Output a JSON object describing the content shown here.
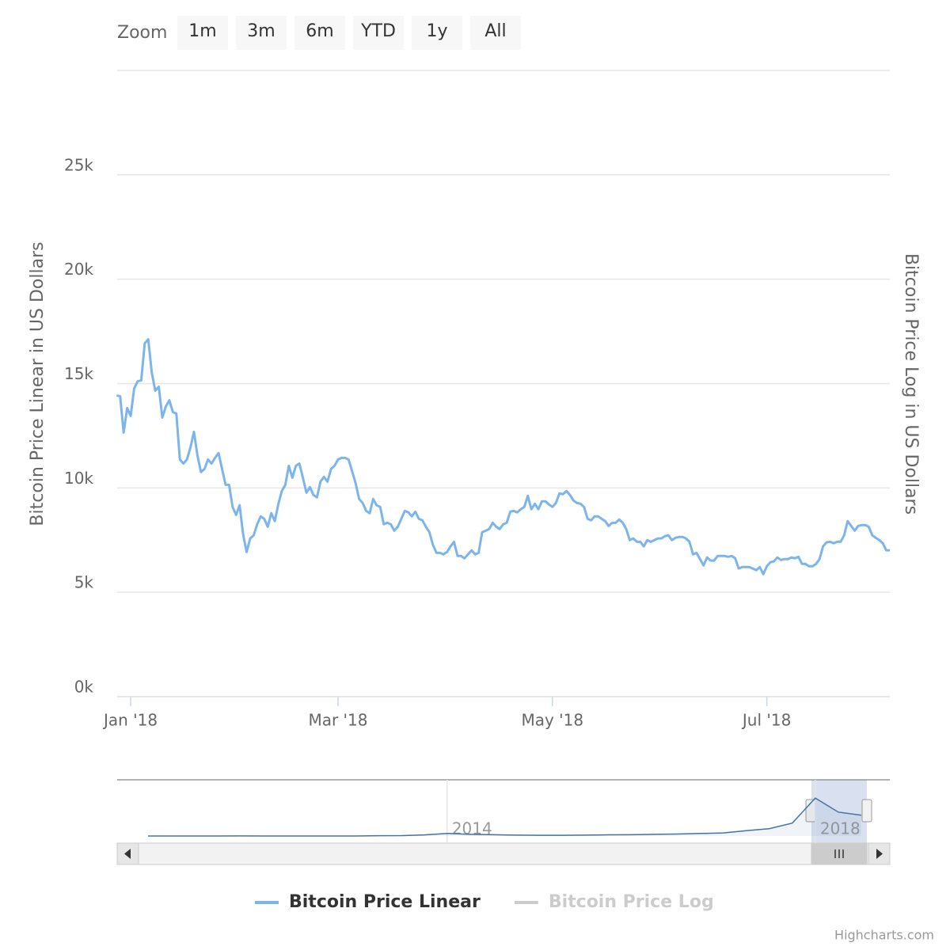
{
  "zoom": {
    "label": "Zoom",
    "buttons": [
      "1m",
      "3m",
      "6m",
      "YTD",
      "1y",
      "All"
    ]
  },
  "chart_data": [
    {
      "type": "line",
      "ylabel": "Bitcoin Price Linear in US Dollars",
      "y2label": "Bitcoin Price Log in US Dollars",
      "categories": [
        null,
        null,
        null,
        null,
        "Jan '18",
        null,
        null,
        null,
        null,
        null,
        null,
        null,
        null,
        null,
        null,
        null,
        null,
        null,
        null,
        null,
        null,
        null,
        null,
        null,
        null,
        null,
        null,
        null,
        null,
        null,
        null,
        null,
        null,
        null,
        null,
        null,
        null,
        null,
        null,
        null,
        null,
        null,
        null,
        null,
        null,
        null,
        null,
        null,
        null,
        null,
        null,
        null,
        null,
        null,
        null,
        null,
        null,
        null,
        null,
        null,
        null,
        null,
        null,
        "Mar '18",
        null,
        null,
        null,
        null,
        null,
        null,
        null,
        null,
        null,
        null,
        null,
        null,
        null,
        null,
        null,
        null,
        null,
        null,
        null,
        null,
        null,
        null,
        null,
        null,
        null,
        null,
        null,
        null,
        null,
        null,
        null,
        null,
        null,
        null,
        null,
        null,
        null,
        null,
        null,
        null,
        null,
        null,
        null,
        null,
        null,
        null,
        null,
        null,
        null,
        null,
        null,
        null,
        null,
        null,
        null,
        null,
        null,
        null,
        null,
        null,
        "May '18",
        null,
        null,
        null,
        null,
        null,
        null,
        null,
        null,
        null,
        null,
        null,
        null,
        null,
        null,
        null,
        null,
        null,
        null,
        null,
        null,
        null,
        null,
        null,
        null,
        null,
        null,
        null,
        null,
        null,
        null,
        null,
        null,
        null,
        null,
        null,
        null,
        null,
        null,
        null,
        null,
        null,
        null,
        null,
        null,
        null,
        null,
        null,
        null,
        null,
        null,
        null,
        null,
        null,
        null,
        null,
        null,
        null,
        null,
        null,
        null,
        "Jul '18",
        null,
        null,
        null,
        null,
        null,
        null,
        null,
        null,
        null,
        null,
        null,
        null,
        null,
        null,
        null,
        null,
        null,
        null,
        null,
        null,
        null,
        null,
        null,
        null,
        null,
        null,
        null,
        null,
        null,
        null,
        null,
        null,
        null,
        null,
        null
      ],
      "series": [
        {
          "name": "Bitcoin Price Linear",
          "color": "#7cb5ec",
          "values": [
            14430,
            14390,
            12650,
            13830,
            13450,
            14770,
            15110,
            15150,
            16930,
            17120,
            15530,
            14660,
            14850,
            13370,
            13900,
            14200,
            13640,
            13560,
            11360,
            11170,
            11360,
            11930,
            12690,
            11550,
            10760,
            10910,
            11360,
            11170,
            11440,
            11670,
            10910,
            10150,
            10150,
            9090,
            8710,
            9170,
            7770,
            6930,
            7580,
            7730,
            8260,
            8640,
            8520,
            8140,
            8790,
            8410,
            9210,
            9850,
            10150,
            11060,
            10490,
            11060,
            11170,
            10490,
            9770,
            10040,
            9660,
            9550,
            10300,
            10530,
            10300,
            10910,
            11060,
            11360,
            11440,
            11440,
            11360,
            10800,
            10230,
            9470,
            9280,
            8900,
            8790,
            9470,
            9170,
            9090,
            8260,
            8330,
            8260,
            7950,
            8140,
            8520,
            8900,
            8830,
            8640,
            8860,
            8520,
            8450,
            8140,
            7880,
            7270,
            6890,
            6890,
            6820,
            6930,
            7200,
            7420,
            6740,
            6740,
            6630,
            6820,
            7010,
            6820,
            6890,
            7880,
            7950,
            8030,
            8330,
            8140,
            8030,
            8260,
            8330,
            8860,
            8900,
            8830,
            8980,
            9090,
            9620,
            8980,
            9240,
            8980,
            9360,
            9360,
            9210,
            9090,
            9280,
            9740,
            9700,
            9850,
            9660,
            9390,
            9280,
            9240,
            9090,
            8520,
            8450,
            8640,
            8640,
            8520,
            8410,
            8180,
            8330,
            8330,
            8490,
            8330,
            8030,
            7500,
            7580,
            7420,
            7420,
            7200,
            7500,
            7420,
            7500,
            7580,
            7580,
            7690,
            7730,
            7500,
            7610,
            7650,
            7650,
            7580,
            7420,
            6820,
            6890,
            6590,
            6290,
            6670,
            6520,
            6520,
            6740,
            6740,
            6740,
            6700,
            6740,
            6630,
            6140,
            6210,
            6210,
            6210,
            6140,
            6060,
            6210,
            5870,
            6250,
            6440,
            6480,
            6670,
            6550,
            6590,
            6590,
            6670,
            6630,
            6700,
            6360,
            6360,
            6250,
            6250,
            6360,
            6590,
            7200,
            7390,
            7420,
            7350,
            7420,
            7420,
            7730,
            8410,
            8180,
            7950,
            8180,
            8220,
            8220,
            8140,
            7730,
            7610,
            7500,
            7350,
            7010,
            7010
          ]
        },
        {
          "name": "Bitcoin Price Log",
          "color": "#cccccc",
          "visible": false,
          "axis": "y2"
        }
      ],
      "ylim": [
        0,
        30000
      ],
      "yticks": [
        {
          "value": 0,
          "label": "0k"
        },
        {
          "value": 5000,
          "label": "5k"
        },
        {
          "value": 10000,
          "label": "10k"
        },
        {
          "value": 15000,
          "label": "15k"
        },
        {
          "value": 20000,
          "label": "20k"
        },
        {
          "value": 25000,
          "label": "25k"
        }
      ],
      "grid": true,
      "legend": "bottom"
    },
    {
      "type": "area",
      "categories": [
        null,
        null,
        null,
        null,
        null,
        null,
        null,
        null,
        null,
        null,
        null,
        null,
        null,
        "2014",
        null,
        null,
        null,
        null,
        null,
        null,
        null,
        null,
        null,
        null,
        null,
        null,
        null,
        null,
        null,
        "2018",
        null,
        null
      ],
      "series": [
        {
          "color": "#4572a7",
          "values": [
            1,
            5,
            8,
            12,
            30,
            10,
            7,
            6,
            12,
            13,
            100,
            130,
            400,
            900,
            600,
            450,
            300,
            250,
            240,
            300,
            420,
            450,
            600,
            700,
            900,
            1100,
            1900,
            2600,
            4600,
            13500,
            8500,
            7400
          ]
        }
      ],
      "ylim": [
        0,
        20000
      ]
    }
  ],
  "credits": "Highcharts.com"
}
